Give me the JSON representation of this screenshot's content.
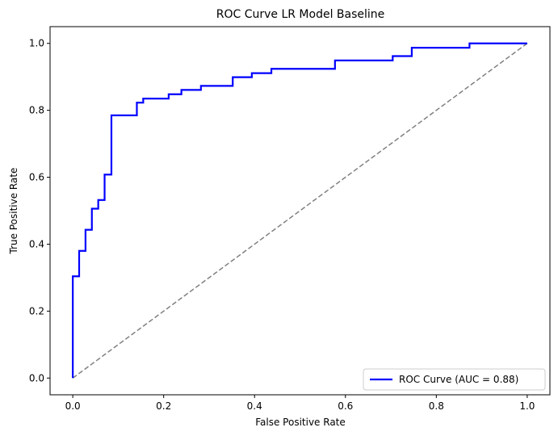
{
  "chart_data": {
    "type": "line",
    "title": "ROC Curve LR Model Baseline",
    "xlabel": "False Positive Rate",
    "ylabel": "True Positive Rate",
    "xlim": [
      -0.05,
      1.05
    ],
    "ylim": [
      -0.05,
      1.05
    ],
    "xticks": [
      0.0,
      0.2,
      0.4,
      0.6,
      0.8,
      1.0
    ],
    "xtick_labels": [
      "0.0",
      "0.2",
      "0.4",
      "0.6",
      "0.8",
      "1.0"
    ],
    "yticks": [
      0.0,
      0.2,
      0.4,
      0.6,
      0.8,
      1.0
    ],
    "ytick_labels": [
      "0.0",
      "0.2",
      "0.4",
      "0.6",
      "0.8",
      "1.0"
    ],
    "grid": false,
    "legend_position": "lower-right",
    "series": [
      {
        "name": "ROC Curve (AUC = 0.88)",
        "color": "#0000ff",
        "style": "solid",
        "points": [
          [
            0.0,
            0.0
          ],
          [
            0.0,
            0.304
          ],
          [
            0.014,
            0.304
          ],
          [
            0.014,
            0.38
          ],
          [
            0.028,
            0.38
          ],
          [
            0.028,
            0.443
          ],
          [
            0.042,
            0.443
          ],
          [
            0.042,
            0.506
          ],
          [
            0.056,
            0.506
          ],
          [
            0.056,
            0.532
          ],
          [
            0.07,
            0.532
          ],
          [
            0.07,
            0.608
          ],
          [
            0.085,
            0.608
          ],
          [
            0.085,
            0.785
          ],
          [
            0.141,
            0.785
          ],
          [
            0.141,
            0.823
          ],
          [
            0.155,
            0.823
          ],
          [
            0.155,
            0.835
          ],
          [
            0.211,
            0.835
          ],
          [
            0.211,
            0.848
          ],
          [
            0.239,
            0.848
          ],
          [
            0.239,
            0.861
          ],
          [
            0.282,
            0.861
          ],
          [
            0.282,
            0.873
          ],
          [
            0.352,
            0.873
          ],
          [
            0.352,
            0.899
          ],
          [
            0.394,
            0.899
          ],
          [
            0.394,
            0.911
          ],
          [
            0.437,
            0.911
          ],
          [
            0.437,
            0.924
          ],
          [
            0.577,
            0.924
          ],
          [
            0.577,
            0.949
          ],
          [
            0.704,
            0.949
          ],
          [
            0.704,
            0.962
          ],
          [
            0.746,
            0.962
          ],
          [
            0.746,
            0.987
          ],
          [
            0.873,
            0.987
          ],
          [
            0.873,
            1.0
          ],
          [
            1.0,
            1.0
          ]
        ]
      },
      {
        "name": "",
        "color": "#808080",
        "style": "dashed",
        "points": [
          [
            0.0,
            0.0
          ],
          [
            1.0,
            1.0
          ]
        ]
      }
    ]
  }
}
